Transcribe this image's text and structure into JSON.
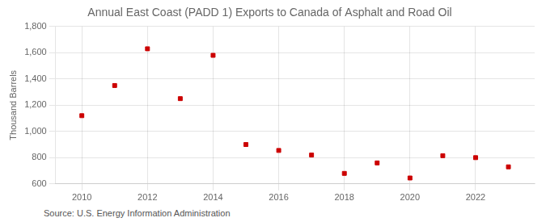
{
  "chart_data": {
    "type": "scatter",
    "title": "Annual East Coast (PADD 1) Exports to Canada of Asphalt and Road Oil",
    "y_label": "Thousand Barrels",
    "annotations": [
      "Source: U.S. Energy Information Administration"
    ],
    "x": [
      2010,
      2011,
      2012,
      2013,
      2014,
      2015,
      2016,
      2017,
      2018,
      2019,
      2020,
      2021,
      2022,
      2023
    ],
    "values": [
      1120,
      1350,
      1630,
      1250,
      1580,
      900,
      855,
      820,
      680,
      760,
      645,
      815,
      800,
      730
    ],
    "color": "#cc0000",
    "marker": "square",
    "xlim": [
      2009.2,
      2023.8
    ],
    "xticks": [
      2010,
      2012,
      2014,
      2016,
      2018,
      2020,
      2022
    ],
    "ylim": [
      600,
      1800
    ],
    "yticks": [
      600,
      800,
      {
        "value": 1000,
        "label": "1,000"
      },
      {
        "value": 1200,
        "label": "1,200"
      },
      {
        "value": 1400,
        "label": "1,400"
      },
      {
        "value": 1600,
        "label": "1,600"
      },
      {
        "value": 1800,
        "label": "1,800"
      }
    ],
    "grid": true
  }
}
